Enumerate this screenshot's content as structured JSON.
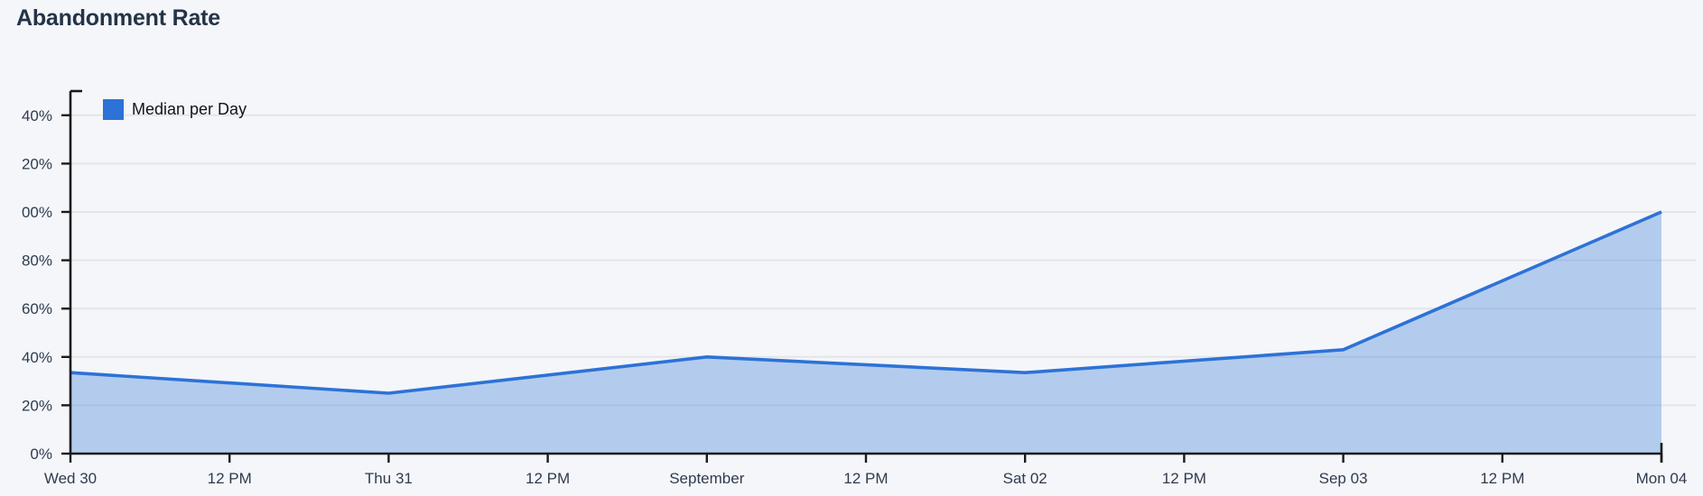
{
  "page": {
    "background": "#f4f6fa"
  },
  "chart_data": {
    "type": "area",
    "title": "Abandonment Rate",
    "legend": {
      "label": "Median per Day",
      "position": "inside-top-left"
    },
    "units": "%",
    "x_axis": {
      "tick_labels": [
        "Wed 30",
        "12 PM",
        "Thu 31",
        "12 PM",
        "September",
        "12 PM",
        "Sat 02",
        "12 PM",
        "Sep 03",
        "12 PM",
        "Mon 04"
      ],
      "tick_interval": "12 hours"
    },
    "y_axis": {
      "tick_values": [
        0,
        20,
        40,
        60,
        80,
        100,
        120,
        140
      ],
      "tick_labels_rendered": [
        "0%",
        "20%",
        "40%",
        "60%",
        "80%",
        "00%",
        "20%",
        "40%"
      ],
      "range": [
        0,
        150
      ],
      "grid": true
    },
    "series": [
      {
        "name": "Median per Day",
        "color": "#2d72d6",
        "fill_opacity": 0.32,
        "points": [
          {
            "x_tick": "Wed 30",
            "x_tick_index": 0,
            "value_pct": 33.5
          },
          {
            "x_tick": "Thu 31",
            "x_tick_index": 2,
            "value_pct": 25
          },
          {
            "x_tick": "September",
            "x_tick_index": 4,
            "value_pct": 40
          },
          {
            "x_tick": "Sat 02",
            "x_tick_index": 6,
            "value_pct": 33.5
          },
          {
            "x_tick": "Sep 03",
            "x_tick_index": 8,
            "value_pct": 43
          },
          {
            "x_tick": "Mon 04",
            "x_tick_index": 10,
            "value_pct": 100
          }
        ]
      }
    ],
    "colors": {
      "background": "#f4f6fa",
      "grid": "#e4e5e9",
      "axis": "#1a1a1a",
      "title_text": "#243347",
      "tick_text": "#2f3b4e",
      "legend_text": "#10151d"
    }
  }
}
